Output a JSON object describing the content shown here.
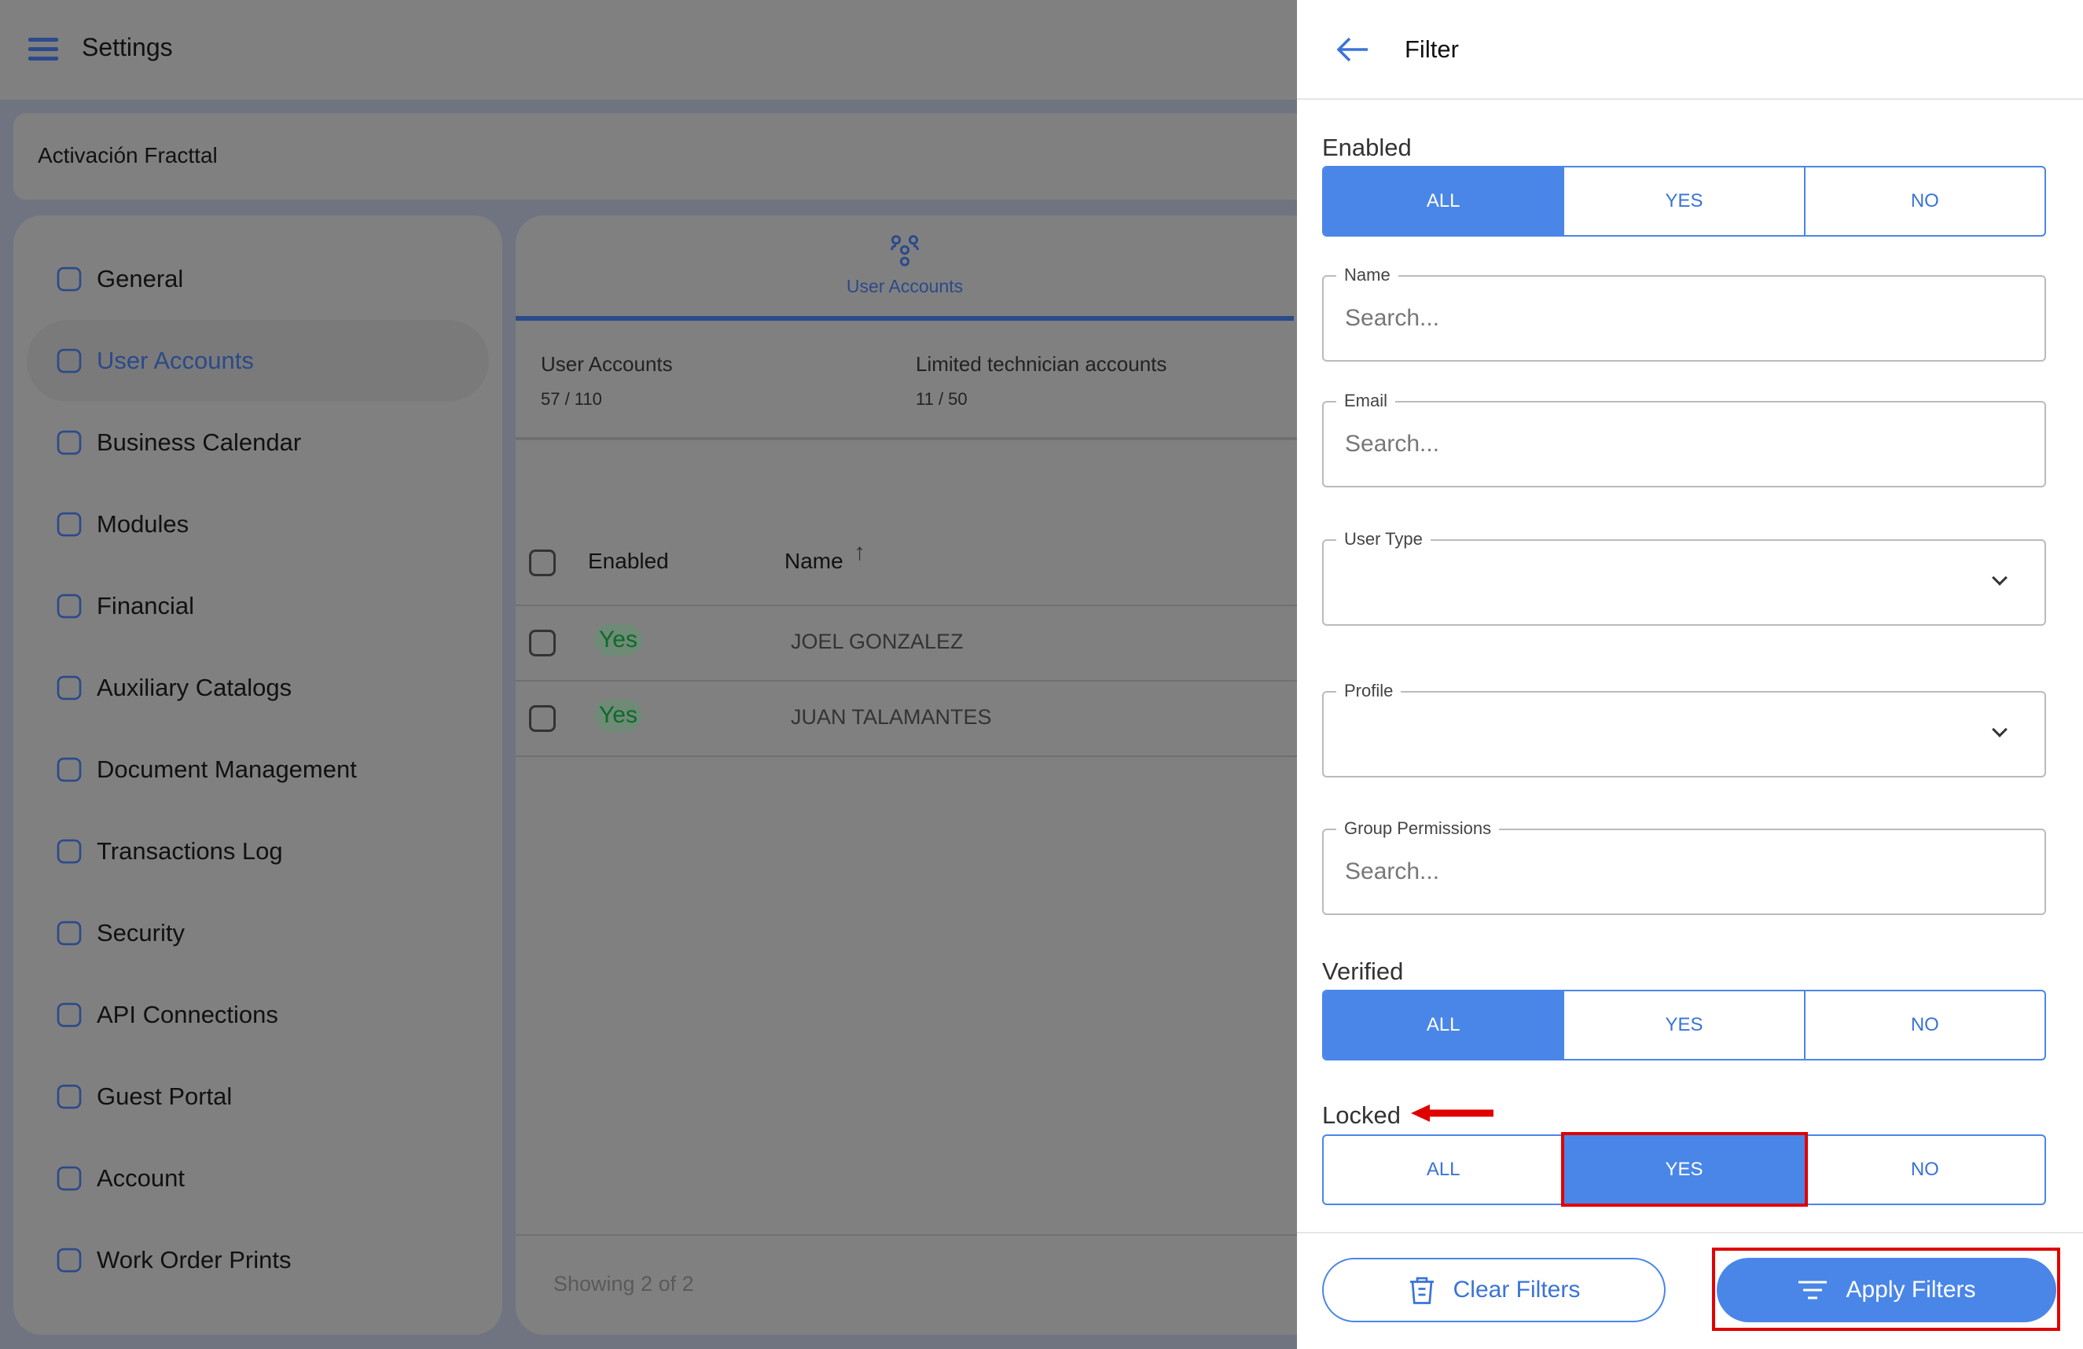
{
  "header": {
    "title": "Settings",
    "menu_icon": "hamburger-icon"
  },
  "breadcrumb": {
    "text": "Activación Fracttal"
  },
  "sidebar": {
    "items": [
      {
        "label": "General",
        "icon": "home-icon"
      },
      {
        "label": "User Accounts",
        "icon": "user-add-icon",
        "active": true
      },
      {
        "label": "Business Calendar",
        "icon": "calendar-icon"
      },
      {
        "label": "Modules",
        "icon": "checklist-icon"
      },
      {
        "label": "Financial",
        "icon": "coins-icon"
      },
      {
        "label": "Auxiliary Catalogs",
        "icon": "catalog-icon"
      },
      {
        "label": "Document Management",
        "icon": "document-icon"
      },
      {
        "label": "Transactions Log",
        "icon": "log-icon"
      },
      {
        "label": "Security",
        "icon": "shield-icon"
      },
      {
        "label": "API Connections",
        "icon": "api-gear-icon"
      },
      {
        "label": "Guest Portal",
        "icon": "portal-icon"
      },
      {
        "label": "Account",
        "icon": "account-icon"
      },
      {
        "label": "Work Order Prints",
        "icon": "printer-icon"
      }
    ]
  },
  "main": {
    "tab": {
      "label": "User Accounts",
      "icon": "users-group-icon"
    },
    "stats": [
      {
        "label": "User Accounts",
        "value": "57 / 110"
      },
      {
        "label": "Limited technician accounts",
        "value": "11 / 50"
      }
    ],
    "table": {
      "columns": [
        "Enabled",
        "Name"
      ],
      "sort": "ascending",
      "rows": [
        {
          "enabled": "Yes",
          "name": "JOEL GONZALEZ"
        },
        {
          "enabled": "Yes",
          "name": "JUAN TALAMANTES"
        }
      ]
    },
    "footer": "Showing 2 of 2"
  },
  "filter": {
    "title": "Filter",
    "enabled": {
      "label": "Enabled",
      "options": [
        "ALL",
        "YES",
        "NO"
      ],
      "selected": "ALL"
    },
    "name": {
      "label": "Name",
      "placeholder": "Search..."
    },
    "email": {
      "label": "Email",
      "placeholder": "Search..."
    },
    "user_type": {
      "label": "User Type"
    },
    "profile": {
      "label": "Profile"
    },
    "group_permissions": {
      "label": "Group Permissions",
      "placeholder": "Search..."
    },
    "verified": {
      "label": "Verified",
      "options": [
        "ALL",
        "YES",
        "NO"
      ],
      "selected": "ALL"
    },
    "locked": {
      "label": "Locked",
      "options": [
        "ALL",
        "YES",
        "NO"
      ],
      "selected": "YES"
    },
    "clear_label": "Clear Filters",
    "apply_label": "Apply Filters"
  },
  "colors": {
    "accent": "#4a86e8",
    "annotation": "#e00000",
    "enabled_text": "#0d6b2a"
  }
}
